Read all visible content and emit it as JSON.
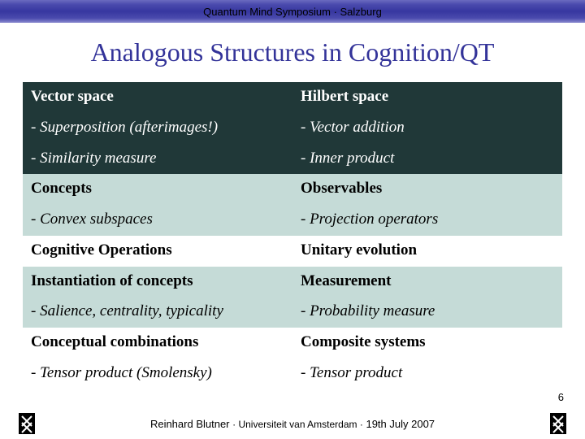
{
  "header": {
    "text": "Quantum Mind Symposium · Salzburg"
  },
  "title": "Analogous Structures in Cognition/QT",
  "table": {
    "rows": [
      {
        "style": "dark",
        "left_bold": "Vector space",
        "right_bold": "Hilbert space"
      },
      {
        "style": "dark",
        "left_italic": "- Superposition (afterimages!)",
        "right_italic": "- Vector addition"
      },
      {
        "style": "dark",
        "left_italic": "- Similarity measure",
        "right_italic": "- Inner product"
      },
      {
        "style": "pale",
        "left_bold": "Concepts",
        "right_bold": "Observables"
      },
      {
        "style": "pale",
        "left_italic": "- Convex subspaces",
        "right_italic": "- Projection operators"
      },
      {
        "style": "white",
        "left_bold": "Cognitive Operations",
        "right_bold": "Unitary evolution"
      },
      {
        "style": "pale",
        "left_bold": "Instantiation of concepts",
        "right_bold": "Measurement"
      },
      {
        "style": "pale",
        "left_italic": "- Salience, centrality, typicality",
        "right_italic": "- Probability measure"
      },
      {
        "style": "white",
        "left_bold": "Conceptual combinations",
        "right_bold": "Composite systems"
      },
      {
        "style": "white",
        "left_italic": "- Tensor product (Smolensky)",
        "right_italic": "- Tensor product"
      }
    ]
  },
  "page_number": "6",
  "footer": {
    "author": "Reinhard Blutner",
    "affiliation": "· Universiteit van Amsterdam ·",
    "date": "19th July 2007"
  },
  "colors": {
    "title_color": "#333399",
    "pale_row": "#c5dbd7",
    "dark_row": "#203838",
    "white_row": "#ffffff",
    "topbar_mid": "#3737a0"
  }
}
